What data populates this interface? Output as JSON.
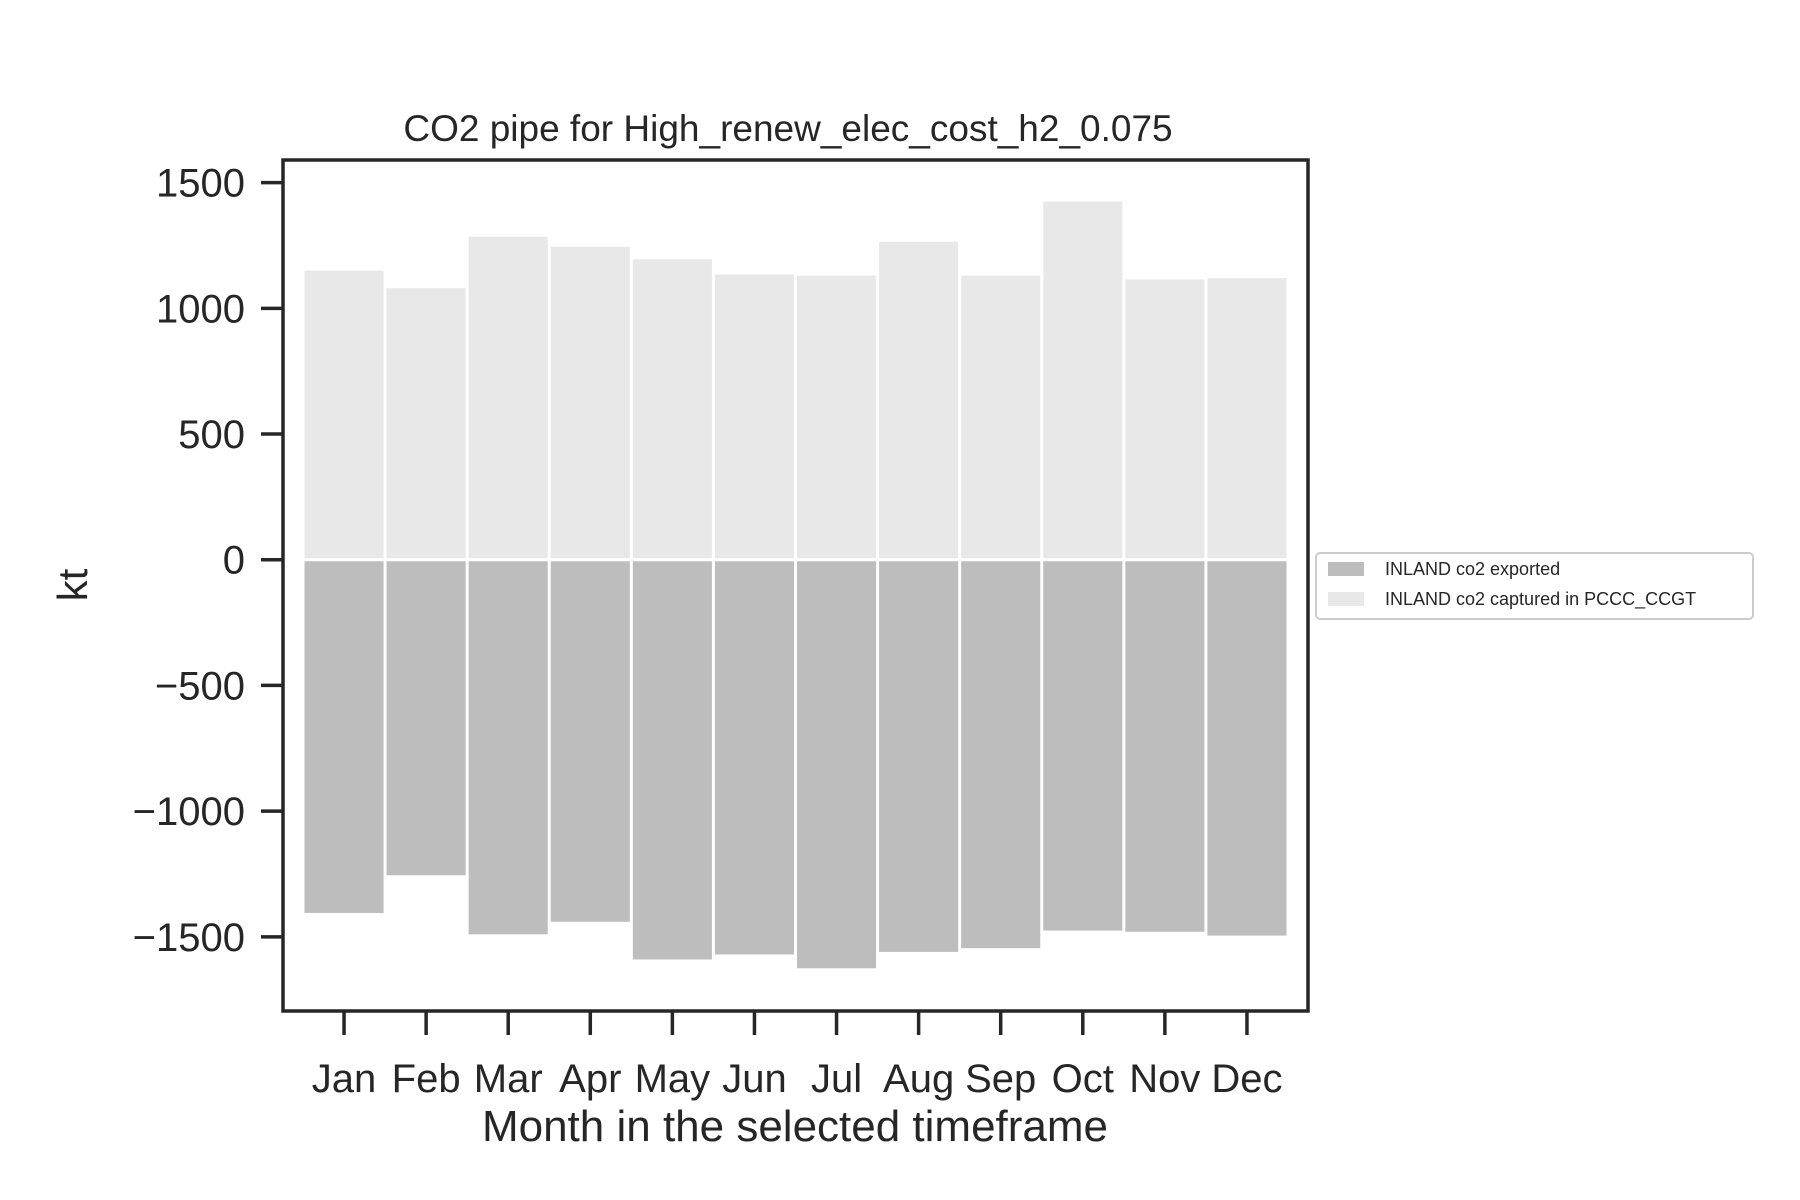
{
  "chart_data": {
    "type": "bar",
    "stacked": true,
    "title": "CO2 pipe for High_renew_elec_cost_h2_0.075",
    "xlabel": "Month in the selected timeframe",
    "ylabel": "kt",
    "categories": [
      "Jan",
      "Feb",
      "Mar",
      "Apr",
      "May",
      "Jun",
      "Jul",
      "Aug",
      "Sep",
      "Oct",
      "Nov",
      "Dec"
    ],
    "series": [
      {
        "name": "INLAND co2 exported",
        "color": "#bdbdbd",
        "values": [
          -1405,
          -1255,
          -1490,
          -1440,
          -1590,
          -1570,
          -1625,
          -1560,
          -1545,
          -1475,
          -1480,
          -1495
        ]
      },
      {
        "name": "INLAND co2 captured in PCCC_CCGT",
        "color": "#e8e8e8",
        "values": [
          1150,
          1080,
          1285,
          1245,
          1195,
          1135,
          1130,
          1265,
          1130,
          1425,
          1115,
          1120
        ]
      }
    ],
    "ylim": [
      -1795,
      1590
    ],
    "yticks": [
      -1500,
      -1000,
      -500,
      0,
      500,
      1000,
      1500
    ],
    "ytick_labels": [
      "−1500",
      "−1000",
      "−500",
      "0",
      "500",
      "1000",
      "1500"
    ],
    "grid": false,
    "legend_position": "right, outside plot"
  }
}
